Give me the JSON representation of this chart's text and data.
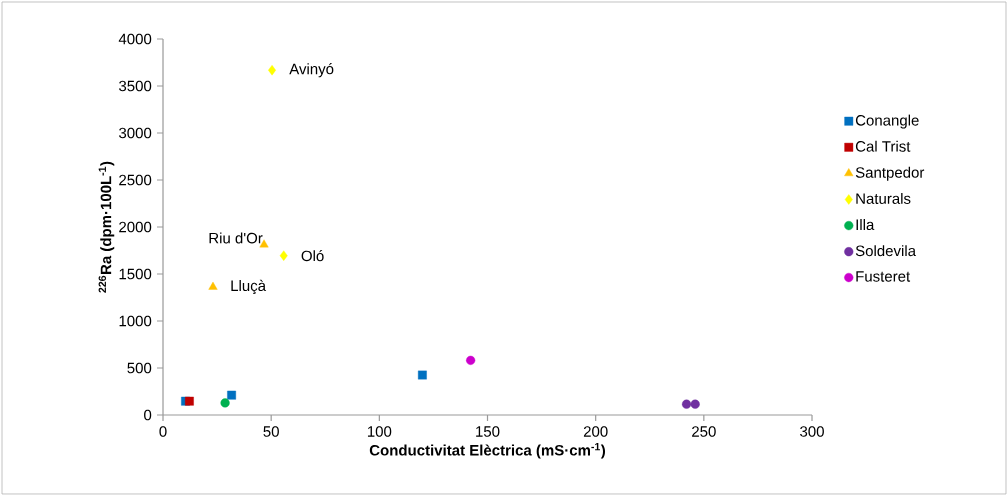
{
  "chart_data": {
    "type": "scatter",
    "xlabel": "Conductivitat Elèctrica (mS·cm$^{-1}$)",
    "ylabel": "$^{226}$Ra (dpm·100L$^{-1}$)",
    "xlim": [
      0,
      300
    ],
    "xticks": [
      0,
      50,
      100,
      150,
      200,
      250,
      300
    ],
    "ylim": [
      0,
      4000
    ],
    "yticks": [
      0,
      500,
      1000,
      1500,
      2000,
      2500,
      3000,
      3500,
      4000
    ],
    "grid": false,
    "legend": "right",
    "series": [
      {
        "name": "Conangle",
        "color": "#0070c0",
        "marker": "square",
        "x": [
          10.4,
          31.7,
          119.9
        ],
        "values": [
          147,
          211,
          425
        ]
      },
      {
        "name": "Cal Trist",
        "color": "#c00000",
        "marker": "square",
        "x": [
          12.2
        ],
        "values": [
          147
        ]
      },
      {
        "name": "Santpedor",
        "color": "#ffc000",
        "marker": "triangle",
        "x": [
          23.1,
          46.7
        ],
        "values": [
          1362,
          1812
        ]
      },
      {
        "name": "Naturals",
        "color": "#ffff00",
        "marker": "diamond",
        "x": [
          50.4,
          55.8
        ],
        "values": [
          3668,
          1695
        ]
      },
      {
        "name": "Illa",
        "color": "#00b050",
        "marker": "circle",
        "x": [
          28.7
        ],
        "values": [
          128
        ]
      },
      {
        "name": "Soldevila",
        "color": "#7030a0",
        "marker": "circle",
        "x": [
          242,
          246
        ],
        "values": [
          115,
          115
        ]
      },
      {
        "name": "Fusteret",
        "color": "#cc00cc",
        "marker": "circle",
        "x": [
          142.2
        ],
        "values": [
          581
        ]
      }
    ],
    "annotations": [
      {
        "text": "Avinyó",
        "x": 50.4,
        "y": 3668
      },
      {
        "text": "Riu d'Or",
        "x": 46.7,
        "y": 1812
      },
      {
        "text": "Oló",
        "x": 55.8,
        "y": 1695
      },
      {
        "text": "Lluçà",
        "x": 23.1,
        "y": 1362
      }
    ]
  }
}
